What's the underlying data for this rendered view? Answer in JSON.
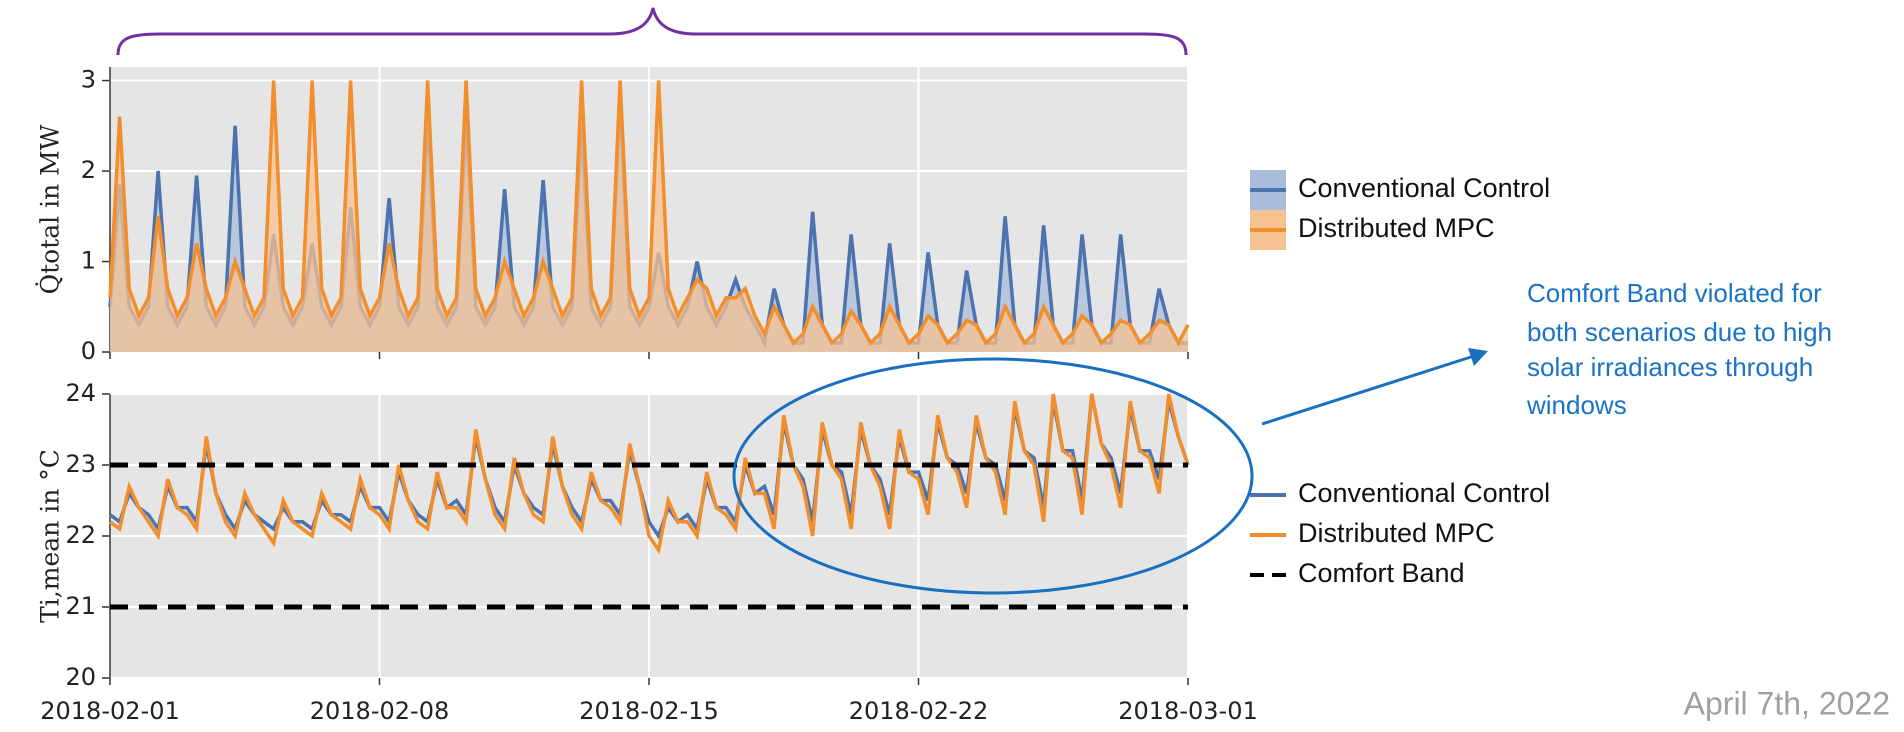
{
  "chart_data": [
    {
      "type": "area",
      "y_label": "Q̇total in MW",
      "x": [
        "2018-02-01 00:00",
        "2018-02-01 06:00",
        "2018-02-01 12:00",
        "2018-02-01 18:00",
        "2018-02-02 00:00",
        "2018-02-02 06:00",
        "2018-02-02 12:00",
        "2018-02-02 18:00",
        "2018-02-03 00:00",
        "2018-02-03 06:00",
        "2018-02-03 12:00",
        "2018-02-03 18:00",
        "2018-02-04 00:00",
        "2018-02-04 06:00",
        "2018-02-04 12:00",
        "2018-02-04 18:00",
        "2018-02-05 00:00",
        "2018-02-05 06:00",
        "2018-02-05 12:00",
        "2018-02-05 18:00",
        "2018-02-06 00:00",
        "2018-02-06 06:00",
        "2018-02-06 12:00",
        "2018-02-06 18:00",
        "2018-02-07 00:00",
        "2018-02-07 06:00",
        "2018-02-07 12:00",
        "2018-02-07 18:00",
        "2018-02-08 00:00",
        "2018-02-08 06:00",
        "2018-02-08 12:00",
        "2018-02-08 18:00",
        "2018-02-09 00:00",
        "2018-02-09 06:00",
        "2018-02-09 12:00",
        "2018-02-09 18:00",
        "2018-02-10 00:00",
        "2018-02-10 06:00",
        "2018-02-10 12:00",
        "2018-02-10 18:00",
        "2018-02-11 00:00",
        "2018-02-11 06:00",
        "2018-02-11 12:00",
        "2018-02-11 18:00",
        "2018-02-12 00:00",
        "2018-02-12 06:00",
        "2018-02-12 12:00",
        "2018-02-12 18:00",
        "2018-02-13 00:00",
        "2018-02-13 06:00",
        "2018-02-13 12:00",
        "2018-02-13 18:00",
        "2018-02-14 00:00",
        "2018-02-14 06:00",
        "2018-02-14 12:00",
        "2018-02-14 18:00",
        "2018-02-15 00:00",
        "2018-02-15 06:00",
        "2018-02-15 12:00",
        "2018-02-15 18:00",
        "2018-02-16 00:00",
        "2018-02-16 06:00",
        "2018-02-16 12:00",
        "2018-02-16 18:00",
        "2018-02-17 00:00",
        "2018-02-17 06:00",
        "2018-02-17 12:00",
        "2018-02-17 18:00",
        "2018-02-18 00:00",
        "2018-02-18 06:00",
        "2018-02-18 12:00",
        "2018-02-18 18:00",
        "2018-02-19 00:00",
        "2018-02-19 06:00",
        "2018-02-19 12:00",
        "2018-02-19 18:00",
        "2018-02-20 00:00",
        "2018-02-20 06:00",
        "2018-02-20 12:00",
        "2018-02-20 18:00",
        "2018-02-21 00:00",
        "2018-02-21 06:00",
        "2018-02-21 12:00",
        "2018-02-21 18:00",
        "2018-02-22 00:00",
        "2018-02-22 06:00",
        "2018-02-22 12:00",
        "2018-02-22 18:00",
        "2018-02-23 00:00",
        "2018-02-23 06:00",
        "2018-02-23 12:00",
        "2018-02-23 18:00",
        "2018-02-24 00:00",
        "2018-02-24 06:00",
        "2018-02-24 12:00",
        "2018-02-24 18:00",
        "2018-02-25 00:00",
        "2018-02-25 06:00",
        "2018-02-25 12:00",
        "2018-02-25 18:00",
        "2018-02-26 00:00",
        "2018-02-26 06:00",
        "2018-02-26 12:00",
        "2018-02-26 18:00",
        "2018-02-27 00:00",
        "2018-02-27 06:00",
        "2018-02-27 12:00",
        "2018-02-27 18:00",
        "2018-02-28 00:00",
        "2018-02-28 06:00",
        "2018-02-28 12:00",
        "2018-02-28 18:00",
        "2018-03-01 00:00"
      ],
      "series": [
        {
          "name": "Conventional Control",
          "color": "#4c72b0",
          "fill": "#a9bcd9",
          "values": [
            0.5,
            1.85,
            0.5,
            0.3,
            0.5,
            2.0,
            0.5,
            0.3,
            0.5,
            1.95,
            0.5,
            0.3,
            0.5,
            2.5,
            0.5,
            0.3,
            0.5,
            1.3,
            0.5,
            0.3,
            0.5,
            1.2,
            0.5,
            0.3,
            0.5,
            1.6,
            0.5,
            0.3,
            0.5,
            1.7,
            0.5,
            0.3,
            0.5,
            2.6,
            0.5,
            0.3,
            0.5,
            2.6,
            0.5,
            0.3,
            0.5,
            1.8,
            0.5,
            0.3,
            0.5,
            1.9,
            0.5,
            0.3,
            0.5,
            2.5,
            0.5,
            0.3,
            0.5,
            2.8,
            0.5,
            0.3,
            0.5,
            1.1,
            0.5,
            0.3,
            0.5,
            1.0,
            0.5,
            0.3,
            0.5,
            0.8,
            0.5,
            0.3,
            0.1,
            0.7,
            0.3,
            0.1,
            0.1,
            1.55,
            0.3,
            0.1,
            0.1,
            1.3,
            0.3,
            0.1,
            0.1,
            1.2,
            0.3,
            0.1,
            0.1,
            1.1,
            0.3,
            0.1,
            0.1,
            0.9,
            0.3,
            0.1,
            0.1,
            1.5,
            0.3,
            0.1,
            0.1,
            1.4,
            0.3,
            0.1,
            0.1,
            1.3,
            0.3,
            0.1,
            0.1,
            1.3,
            0.3,
            0.1,
            0.1,
            0.7,
            0.3,
            0.1,
            0.1
          ]
        },
        {
          "name": "Distributed MPC",
          "color": "#f28e2b",
          "fill": "#f7c292",
          "values": [
            0.6,
            2.6,
            0.7,
            0.4,
            0.6,
            1.5,
            0.7,
            0.4,
            0.6,
            1.2,
            0.7,
            0.4,
            0.6,
            1.0,
            0.7,
            0.4,
            0.6,
            3.0,
            0.7,
            0.4,
            0.6,
            3.0,
            0.7,
            0.4,
            0.6,
            3.0,
            0.7,
            0.4,
            0.6,
            1.2,
            0.7,
            0.4,
            0.6,
            3.0,
            0.7,
            0.4,
            0.6,
            3.0,
            0.7,
            0.4,
            0.6,
            1.0,
            0.7,
            0.4,
            0.6,
            1.0,
            0.7,
            0.4,
            0.6,
            3.0,
            0.7,
            0.4,
            0.6,
            3.0,
            0.7,
            0.4,
            0.6,
            3.0,
            0.7,
            0.4,
            0.6,
            0.8,
            0.7,
            0.4,
            0.6,
            0.6,
            0.7,
            0.4,
            0.2,
            0.5,
            0.3,
            0.1,
            0.2,
            0.5,
            0.3,
            0.1,
            0.2,
            0.45,
            0.3,
            0.1,
            0.2,
            0.5,
            0.3,
            0.1,
            0.2,
            0.4,
            0.3,
            0.1,
            0.2,
            0.35,
            0.3,
            0.1,
            0.2,
            0.5,
            0.3,
            0.1,
            0.2,
            0.5,
            0.3,
            0.1,
            0.2,
            0.4,
            0.3,
            0.1,
            0.2,
            0.35,
            0.3,
            0.1,
            0.2,
            0.35,
            0.3,
            0.1,
            0.3
          ]
        }
      ],
      "ylim": [
        0,
        3.15
      ],
      "yticks": [
        0,
        1,
        2,
        3
      ],
      "xlim": [
        "2018-02-01",
        "2018-03-01"
      ],
      "xticks": [
        "2018-02-01",
        "2018-02-08",
        "2018-02-15",
        "2018-02-22",
        "2018-03-01"
      ],
      "grid": true
    },
    {
      "type": "line",
      "y_label": "Ti,mean in °C",
      "x": [
        "2018-02-01 00:00",
        "2018-02-01 06:00",
        "2018-02-01 12:00",
        "2018-02-01 18:00",
        "2018-02-02 00:00",
        "2018-02-02 06:00",
        "2018-02-02 12:00",
        "2018-02-02 18:00",
        "2018-02-03 00:00",
        "2018-02-03 06:00",
        "2018-02-03 12:00",
        "2018-02-03 18:00",
        "2018-02-04 00:00",
        "2018-02-04 06:00",
        "2018-02-04 12:00",
        "2018-02-04 18:00",
        "2018-02-05 00:00",
        "2018-02-05 06:00",
        "2018-02-05 12:00",
        "2018-02-05 18:00",
        "2018-02-06 00:00",
        "2018-02-06 06:00",
        "2018-02-06 12:00",
        "2018-02-06 18:00",
        "2018-02-07 00:00",
        "2018-02-07 06:00",
        "2018-02-07 12:00",
        "2018-02-07 18:00",
        "2018-02-08 00:00",
        "2018-02-08 06:00",
        "2018-02-08 12:00",
        "2018-02-08 18:00",
        "2018-02-09 00:00",
        "2018-02-09 06:00",
        "2018-02-09 12:00",
        "2018-02-09 18:00",
        "2018-02-10 00:00",
        "2018-02-10 06:00",
        "2018-02-10 12:00",
        "2018-02-10 18:00",
        "2018-02-11 00:00",
        "2018-02-11 06:00",
        "2018-02-11 12:00",
        "2018-02-11 18:00",
        "2018-02-12 00:00",
        "2018-02-12 06:00",
        "2018-02-12 12:00",
        "2018-02-12 18:00",
        "2018-02-13 00:00",
        "2018-02-13 06:00",
        "2018-02-13 12:00",
        "2018-02-13 18:00",
        "2018-02-14 00:00",
        "2018-02-14 06:00",
        "2018-02-14 12:00",
        "2018-02-14 18:00",
        "2018-02-15 00:00",
        "2018-02-15 06:00",
        "2018-02-15 12:00",
        "2018-02-15 18:00",
        "2018-02-16 00:00",
        "2018-02-16 06:00",
        "2018-02-16 12:00",
        "2018-02-16 18:00",
        "2018-02-17 00:00",
        "2018-02-17 06:00",
        "2018-02-17 12:00",
        "2018-02-17 18:00",
        "2018-02-18 00:00",
        "2018-02-18 06:00",
        "2018-02-18 12:00",
        "2018-02-18 18:00",
        "2018-02-19 00:00",
        "2018-02-19 06:00",
        "2018-02-19 12:00",
        "2018-02-19 18:00",
        "2018-02-20 00:00",
        "2018-02-20 06:00",
        "2018-02-20 12:00",
        "2018-02-20 18:00",
        "2018-02-21 00:00",
        "2018-02-21 06:00",
        "2018-02-21 12:00",
        "2018-02-21 18:00",
        "2018-02-22 00:00",
        "2018-02-22 06:00",
        "2018-02-22 12:00",
        "2018-02-22 18:00",
        "2018-02-23 00:00",
        "2018-02-23 06:00",
        "2018-02-23 12:00",
        "2018-02-23 18:00",
        "2018-02-24 00:00",
        "2018-02-24 06:00",
        "2018-02-24 12:00",
        "2018-02-24 18:00",
        "2018-02-25 00:00",
        "2018-02-25 06:00",
        "2018-02-25 12:00",
        "2018-02-25 18:00",
        "2018-02-26 00:00",
        "2018-02-26 06:00",
        "2018-02-26 12:00",
        "2018-02-26 18:00",
        "2018-02-27 00:00",
        "2018-02-27 06:00",
        "2018-02-27 12:00",
        "2018-02-27 18:00",
        "2018-02-28 00:00",
        "2018-02-28 06:00",
        "2018-02-28 12:00",
        "2018-02-28 18:00",
        "2018-03-01 00:00"
      ],
      "series": [
        {
          "name": "Conventional Control",
          "color": "#4c72b0",
          "values": [
            22.3,
            22.2,
            22.6,
            22.4,
            22.3,
            22.1,
            22.7,
            22.4,
            22.4,
            22.2,
            23.3,
            22.6,
            22.3,
            22.1,
            22.5,
            22.3,
            22.2,
            22.1,
            22.4,
            22.2,
            22.2,
            22.1,
            22.5,
            22.3,
            22.3,
            22.2,
            22.7,
            22.4,
            22.4,
            22.2,
            22.9,
            22.5,
            22.3,
            22.2,
            22.8,
            22.4,
            22.5,
            22.3,
            23.4,
            22.8,
            22.4,
            22.2,
            23.0,
            22.6,
            22.4,
            22.3,
            23.3,
            22.7,
            22.4,
            22.2,
            22.8,
            22.5,
            22.5,
            22.3,
            23.2,
            22.7,
            22.2,
            22.0,
            22.4,
            22.2,
            22.3,
            22.1,
            22.8,
            22.4,
            22.4,
            22.2,
            23.0,
            22.6,
            22.7,
            22.3,
            23.6,
            23.0,
            22.8,
            22.2,
            23.5,
            23.0,
            22.9,
            22.3,
            23.5,
            23.0,
            22.8,
            22.3,
            23.4,
            22.9,
            22.9,
            22.5,
            23.6,
            23.1,
            23.0,
            22.6,
            23.6,
            23.1,
            23.0,
            22.5,
            23.8,
            23.2,
            23.1,
            22.4,
            23.9,
            23.2,
            23.2,
            22.5,
            24.0,
            23.3,
            23.1,
            22.6,
            23.8,
            23.2,
            23.2,
            22.8,
            23.9,
            23.4,
            23.0
          ]
        },
        {
          "name": "Distributed MPC",
          "color": "#f28e2b",
          "values": [
            22.2,
            22.1,
            22.7,
            22.4,
            22.2,
            22.0,
            22.8,
            22.4,
            22.3,
            22.1,
            23.4,
            22.6,
            22.2,
            22.0,
            22.6,
            22.3,
            22.1,
            21.9,
            22.5,
            22.2,
            22.1,
            22.0,
            22.6,
            22.3,
            22.2,
            22.1,
            22.8,
            22.4,
            22.3,
            22.1,
            23.0,
            22.5,
            22.2,
            22.1,
            22.9,
            22.4,
            22.4,
            22.2,
            23.5,
            22.8,
            22.3,
            22.1,
            23.1,
            22.6,
            22.3,
            22.2,
            23.4,
            22.7,
            22.3,
            22.1,
            22.9,
            22.5,
            22.4,
            22.2,
            23.3,
            22.7,
            22.0,
            21.8,
            22.5,
            22.2,
            22.2,
            22.0,
            22.9,
            22.4,
            22.3,
            22.1,
            23.1,
            22.6,
            22.6,
            22.1,
            23.7,
            23.0,
            22.7,
            22.0,
            23.6,
            23.0,
            22.8,
            22.1,
            23.6,
            23.0,
            22.7,
            22.1,
            23.5,
            22.9,
            22.8,
            22.3,
            23.7,
            23.1,
            22.9,
            22.4,
            23.7,
            23.1,
            22.9,
            22.3,
            23.9,
            23.2,
            23.0,
            22.2,
            24.0,
            23.2,
            23.1,
            22.3,
            24.0,
            23.3,
            23.0,
            22.4,
            23.9,
            23.2,
            23.1,
            22.6,
            24.0,
            23.4,
            23.0
          ]
        }
      ],
      "comfort_band": {
        "name": "Comfort Band",
        "values": [
          21,
          23
        ],
        "color": "#000000"
      },
      "ylim": [
        20,
        24
      ],
      "yticks": [
        20,
        21,
        22,
        23,
        24
      ],
      "xlim": [
        "2018-02-01",
        "2018-03-01"
      ],
      "xticks": [
        "2018-02-01",
        "2018-02-08",
        "2018-02-15",
        "2018-02-22",
        "2018-03-01"
      ],
      "grid": true
    }
  ],
  "annotation": [
    "Comfort Band violated for",
    "both scenarios due to high",
    "solar irradiances through",
    "windows"
  ],
  "date": "April 7th, 2022"
}
